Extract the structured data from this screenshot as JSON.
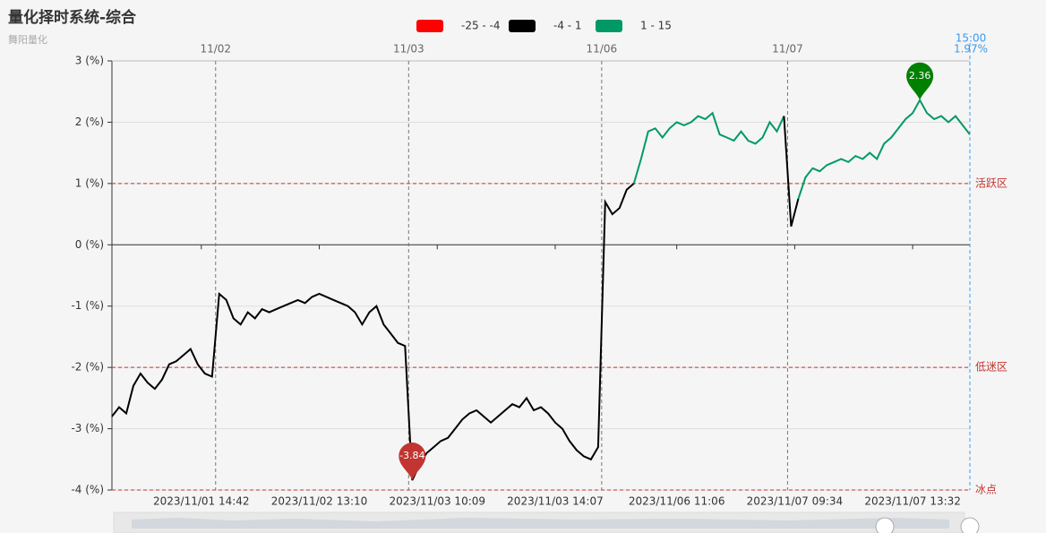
{
  "chart_data": {
    "type": "line",
    "title": "量化择时系统-综合",
    "subtitle": "舞阳量化",
    "visual_map": [
      {
        "min": -25,
        "max": -4,
        "label": "-25 - -4",
        "color": "#ff0000"
      },
      {
        "min": -4,
        "max": 1,
        "label": "-4 - 1",
        "color": "#000000"
      },
      {
        "min": 1,
        "max": 15,
        "label": "1 - 15",
        "color": "#009966"
      }
    ],
    "x": [
      0,
      1,
      2,
      3,
      4,
      5,
      6,
      7,
      8,
      9,
      10,
      11,
      12,
      13,
      14,
      15,
      16,
      17,
      18,
      19,
      20,
      21,
      22,
      23,
      24,
      25,
      26,
      27,
      28,
      29,
      30,
      31,
      32,
      33,
      34,
      35,
      36,
      37,
      38,
      39,
      40,
      41,
      42,
      43,
      44,
      45,
      46,
      47,
      48,
      49,
      50,
      51,
      52,
      53,
      54,
      55,
      56,
      57,
      58,
      59,
      60,
      61,
      62,
      63,
      64,
      65,
      66,
      67,
      68,
      69,
      70,
      71,
      72,
      73,
      74,
      75,
      76,
      77,
      78,
      79,
      80,
      81,
      82,
      83,
      84,
      85,
      86,
      87,
      88,
      89,
      90,
      91,
      92,
      93,
      94,
      95,
      96,
      97,
      98,
      99,
      100,
      101,
      102,
      103,
      104,
      105,
      106,
      107,
      108,
      109,
      110,
      111,
      112,
      113,
      114,
      115,
      116,
      117,
      118,
      119,
      120
    ],
    "values": [
      -2.8,
      -2.65,
      -2.75,
      -2.3,
      -2.1,
      -2.25,
      -2.35,
      -2.2,
      -1.95,
      -1.9,
      -1.8,
      -1.7,
      -1.95,
      -2.1,
      -2.15,
      -0.8,
      -0.9,
      -1.2,
      -1.3,
      -1.1,
      -1.2,
      -1.05,
      -1.1,
      -1.05,
      -1.0,
      -0.95,
      -0.9,
      -0.95,
      -0.85,
      -0.8,
      -0.85,
      -0.9,
      -0.95,
      -1.0,
      -1.1,
      -1.3,
      -1.1,
      -1.0,
      -1.3,
      -1.45,
      -1.6,
      -1.65,
      -3.84,
      -3.6,
      -3.4,
      -3.3,
      -3.2,
      -3.15,
      -3.0,
      -2.85,
      -2.75,
      -2.7,
      -2.8,
      -2.9,
      -2.8,
      -2.7,
      -2.6,
      -2.65,
      -2.5,
      -2.7,
      -2.65,
      -2.75,
      -2.9,
      -3.0,
      -3.2,
      -3.35,
      -3.45,
      -3.5,
      -3.3,
      0.7,
      0.5,
      0.6,
      0.9,
      1.0,
      1.4,
      1.85,
      1.9,
      1.75,
      1.9,
      2.0,
      1.95,
      2.0,
      2.1,
      2.05,
      2.15,
      1.8,
      1.75,
      1.7,
      1.85,
      1.7,
      1.65,
      1.75,
      2.0,
      1.85,
      2.1,
      0.3,
      0.75,
      1.1,
      1.25,
      1.2,
      1.3,
      1.35,
      1.4,
      1.35,
      1.45,
      1.4,
      1.5,
      1.4,
      1.65,
      1.75,
      1.9,
      2.05,
      2.15,
      2.36,
      2.15,
      2.05,
      2.1,
      2.0,
      2.1,
      1.95,
      1.8
    ],
    "xlim": [
      0,
      120
    ],
    "xticks": [
      {
        "value": 12.5,
        "label": "2023/11/01 14:42"
      },
      {
        "value": 29,
        "label": "2023/11/02 13:10"
      },
      {
        "value": 45.5,
        "label": "2023/11/03 10:09"
      },
      {
        "value": 62,
        "label": "2023/11/03 14:07"
      },
      {
        "value": 79,
        "label": "2023/11/06 11:06"
      },
      {
        "value": 95.5,
        "label": "2023/11/07 09:34"
      },
      {
        "value": 112,
        "label": "2023/11/07 13:32"
      }
    ],
    "day_ticks": [
      {
        "value": 14.5,
        "label": "11/02"
      },
      {
        "value": 41.5,
        "label": "11/03"
      },
      {
        "value": 68.5,
        "label": "11/06"
      },
      {
        "value": 94.5,
        "label": "11/07"
      }
    ],
    "ylim": [
      -4,
      3
    ],
    "yticks": [
      {
        "value": -4,
        "label": "-4 (%)"
      },
      {
        "value": -3,
        "label": "-3 (%)"
      },
      {
        "value": -2,
        "label": "-2 (%)"
      },
      {
        "value": -1,
        "label": "-1 (%)"
      },
      {
        "value": 0,
        "label": "0 (%)"
      },
      {
        "value": 1,
        "label": "1 (%)"
      },
      {
        "value": 2,
        "label": "2 (%)"
      },
      {
        "value": 3,
        "label": "3 (%)"
      }
    ],
    "grid": true,
    "mark_lines": [
      {
        "value": 1,
        "label": "活跃区"
      },
      {
        "value": -2,
        "label": "低迷区"
      },
      {
        "value": -4,
        "label": "冰点"
      }
    ],
    "mark_points": [
      {
        "value": 2.36,
        "color": "#008000"
      },
      {
        "value": -3.84,
        "color": "#c23531"
      }
    ],
    "axis_pointer": {
      "label": "15:00",
      "value": 1.97,
      "value_label": "1.97%"
    }
  }
}
